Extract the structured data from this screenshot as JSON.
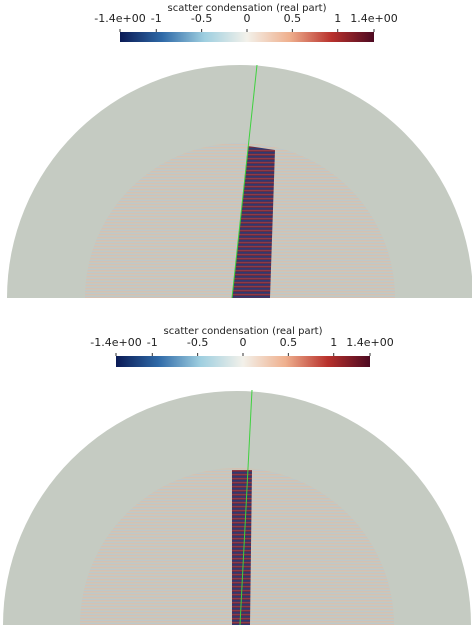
{
  "chart_data": [
    {
      "type": "field",
      "title": "scatter condensation (real part)",
      "clim": [
        -1.4,
        1.4
      ],
      "ticks": [
        {
          "value": -1.4,
          "label": "-1.4e+00"
        },
        -1,
        -0.5,
        0,
        0.5,
        1,
        {
          "value": 1.4,
          "label": "1.4e+00"
        }
      ],
      "colormap": [
        "#0a1a55",
        "#2f6aa8",
        "#9fcfe0",
        "#f3f1ea",
        "#efb08e",
        "#b8312c",
        "#4d0a22"
      ]
    },
    {
      "type": "field",
      "title": "scatter condensation (real part)",
      "clim": [
        -1.4,
        1.4
      ],
      "ticks": [
        {
          "value": -1.4,
          "label": "-1.4e+00"
        },
        -1,
        -0.5,
        0,
        0.5,
        1,
        {
          "value": 1.4,
          "label": "1.4e+00"
        }
      ],
      "colormap": [
        "#0a1a55",
        "#2f6aa8",
        "#9fcfe0",
        "#f3f1ea",
        "#efb08e",
        "#b8312c",
        "#4d0a22"
      ]
    }
  ]
}
